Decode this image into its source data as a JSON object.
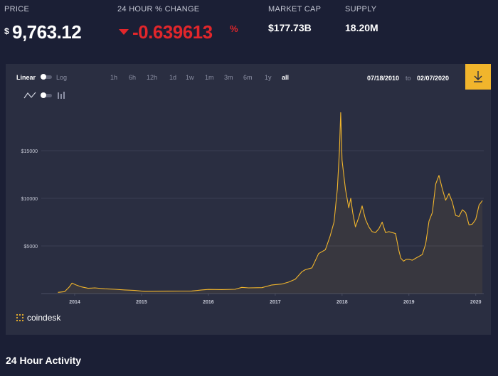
{
  "stats": {
    "price": {
      "label": "PRICE",
      "currency": "$",
      "value": "9,763.12"
    },
    "change": {
      "label": "24 HOUR % CHANGE",
      "value": "-0.639613",
      "unit": "%",
      "direction": "down",
      "color": "#e2262b"
    },
    "market_cap": {
      "label": "MARKET CAP",
      "value": "$177.73B"
    },
    "supply": {
      "label": "SUPPLY",
      "value": "18.20M"
    }
  },
  "chart_controls": {
    "scale_linear": "Linear",
    "scale_log": "Log",
    "active_scale": "Linear",
    "ranges": [
      "1h",
      "6h",
      "12h",
      "1d",
      "1w",
      "1m",
      "3m",
      "6m",
      "1y",
      "all"
    ],
    "active_range": "all",
    "date_from": "07/18/2010",
    "date_to_word": "to",
    "date_to": "02/07/2020",
    "download_icon": "download-icon",
    "accent_color": "#f1b52c"
  },
  "chart_data": {
    "type": "area",
    "series": [
      {
        "values_note_free": true,
        "x": [
          2013.75,
          2013.85,
          2013.92,
          2013.96,
          2014.02,
          2014.1,
          2014.2,
          2014.3,
          2014.45,
          2014.6,
          2014.75,
          2014.9,
          2015.0,
          2015.05,
          2015.2,
          2015.4,
          2015.6,
          2015.75,
          2015.9,
          2016.0,
          2016.2,
          2016.4,
          2016.5,
          2016.6,
          2016.8,
          2016.95,
          2017.1,
          2017.2,
          2017.3,
          2017.4,
          2017.45,
          2017.55,
          2017.65,
          2017.75,
          2017.82,
          2017.88,
          2017.93,
          2017.96,
          2017.98,
          2018.0,
          2018.05,
          2018.1,
          2018.13,
          2018.16,
          2018.2,
          2018.25,
          2018.3,
          2018.35,
          2018.4,
          2018.45,
          2018.5,
          2018.55,
          2018.6,
          2018.65,
          2018.7,
          2018.75,
          2018.8,
          2018.85,
          2018.88,
          2018.92,
          2018.96,
          2019.0,
          2019.05,
          2019.1,
          2019.15,
          2019.2,
          2019.25,
          2019.3,
          2019.35,
          2019.4,
          2019.45,
          2019.5,
          2019.55,
          2019.6,
          2019.65,
          2019.7,
          2019.75,
          2019.8,
          2019.85,
          2019.9,
          2019.95,
          2020.0,
          2020.05,
          2020.1
        ],
        "y": [
          130,
          200,
          700,
          1100,
          900,
          700,
          550,
          600,
          500,
          450,
          380,
          330,
          250,
          230,
          240,
          250,
          260,
          270,
          380,
          430,
          420,
          450,
          650,
          600,
          620,
          900,
          1000,
          1200,
          1500,
          2300,
          2500,
          2700,
          4200,
          4600,
          6000,
          7500,
          11000,
          15000,
          19000,
          14000,
          11000,
          9000,
          10000,
          8500,
          7000,
          8000,
          9200,
          7800,
          7000,
          6500,
          6400,
          6800,
          7500,
          6400,
          6500,
          6400,
          6300,
          4500,
          3700,
          3400,
          3600,
          3600,
          3500,
          3700,
          3900,
          4100,
          5200,
          7600,
          8500,
          11500,
          12400,
          11000,
          9800,
          10500,
          9600,
          8200,
          8100,
          8800,
          8500,
          7200,
          7300,
          7800,
          9300,
          9763
        ]
      }
    ],
    "x_ticks": [
      "2014",
      "2015",
      "2016",
      "2017",
      "2018",
      "2019",
      "2020"
    ],
    "y_ticks": [
      "$5000",
      "$10000",
      "$15000"
    ],
    "xlim": [
      2013.5,
      2020.12
    ],
    "ylim": [
      0,
      20000
    ],
    "grid": "horizontal",
    "line_color": "#f1b52c"
  },
  "branding": {
    "logo_text": "coindesk"
  },
  "section": {
    "title": "24 Hour Activity"
  }
}
